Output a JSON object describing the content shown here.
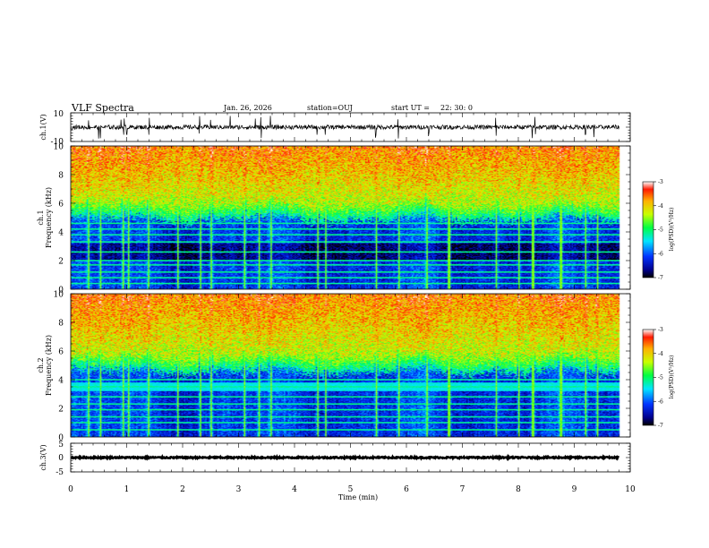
{
  "header": {
    "title": "VLF Spectra",
    "date": "Jan. 26, 2026",
    "station": "station=OUJ",
    "start_label": "start  UT =",
    "start_time": "22: 30: 0"
  },
  "chart_data": [
    {
      "type": "line",
      "id": "ch1-waveform",
      "ylabel": "ch.1(V)",
      "ylim": [
        -10,
        10
      ],
      "yticks": [
        "10",
        "-10"
      ],
      "xlim": [
        0,
        10
      ],
      "trace_end_min": 9.8,
      "baseline_v": 0,
      "noise_amplitude_v": 1.5,
      "spike_times_min": [
        0.32,
        0.5,
        0.53,
        0.9,
        0.95,
        1.0,
        1.4,
        2.3,
        2.5,
        2.85,
        3.3,
        3.4,
        3.57,
        4.4,
        4.55,
        5.45,
        5.85,
        6.4,
        7.6,
        8.25,
        8.3,
        9.2,
        9.35
      ],
      "color": "#000000"
    },
    {
      "type": "heatmap",
      "id": "ch1-spectrogram",
      "ylabel_top": "ch.1",
      "ylabel": "Frequency (kHz)",
      "ylim": [
        0,
        10
      ],
      "yticks": [
        "10",
        "8",
        "6",
        "4",
        "2",
        "0"
      ],
      "xlim": [
        0,
        10
      ],
      "data_end_min": 9.8,
      "hiss_boundary_khz": 5.8,
      "dark_band_khz": [
        2.0,
        3.2
      ],
      "line_frequencies_khz": [
        0.4,
        0.8,
        1.2,
        1.7,
        2.0,
        2.6,
        3.3,
        3.8,
        4.2,
        4.6
      ],
      "burst_times_min": [
        0.3,
        0.52,
        0.92,
        1.02,
        1.38,
        1.9,
        2.3,
        2.5,
        3.1,
        3.35,
        3.56,
        4.4,
        4.55,
        5.45,
        5.85,
        6.35,
        6.75,
        7.6,
        8.0,
        8.25,
        8.75,
        9.2,
        9.4
      ],
      "colorbar": {
        "label": "log(PSD)(V²/Hz)",
        "range": [
          -7,
          -3
        ],
        "ticks": [
          "-3",
          "-4",
          "-5",
          "-6",
          "-7"
        ]
      }
    },
    {
      "type": "heatmap",
      "id": "ch2-spectrogram",
      "ylabel_top": "ch.2",
      "ylabel": "Frequency (kHz)",
      "ylim": [
        0,
        10
      ],
      "yticks": [
        "10",
        "8",
        "6",
        "4",
        "2",
        "0"
      ],
      "xlim": [
        0,
        10
      ],
      "data_end_min": 9.8,
      "hiss_boundary_khz": 5.5,
      "cyan_band_khz": [
        3.2,
        3.8
      ],
      "line_frequencies_khz": [
        0.5,
        1.0,
        1.4,
        1.9,
        2.3,
        2.8,
        3.5,
        4.0
      ],
      "burst_times_min": [
        0.3,
        0.52,
        0.92,
        1.02,
        1.38,
        1.9,
        2.3,
        2.5,
        3.1,
        3.35,
        3.56,
        4.4,
        4.55,
        5.45,
        5.85,
        6.35,
        6.75,
        7.6,
        8.0,
        8.25,
        8.75,
        9.2,
        9.4
      ],
      "colorbar": {
        "label": "log(PSD)(V²/Hz)",
        "range": [
          -7,
          -3
        ],
        "ticks": [
          "-3",
          "-4",
          "-5",
          "-6",
          "-7"
        ]
      }
    },
    {
      "type": "line",
      "id": "ch3-waveform",
      "ylabel": "ch.3(V)",
      "ylim": [
        -5,
        5
      ],
      "yticks": [
        "5",
        "0",
        "-5"
      ],
      "xlim": [
        0,
        10
      ],
      "trace_end_min": 9.8,
      "baseline_v": 0,
      "noise_amplitude_v": 0.25,
      "color": "#000000"
    }
  ],
  "xaxis": {
    "label": "Time  (min)",
    "ticks": [
      "0",
      "1",
      "2",
      "3",
      "4",
      "5",
      "6",
      "7",
      "8",
      "9",
      "10"
    ]
  }
}
